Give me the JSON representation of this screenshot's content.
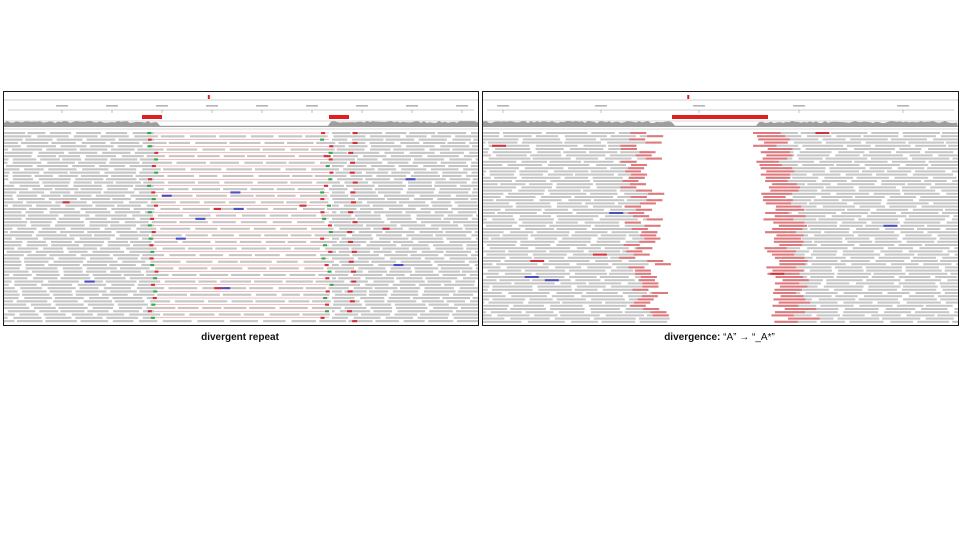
{
  "captions": {
    "left": "divergent repeat",
    "right_bold": "divergence:",
    "right_rest": " “A” → “_A*”"
  },
  "colors": {
    "read_gray": "#c6c6c6",
    "coverage_gray": "#9e9e9e",
    "mismatch_red": "#d6313a",
    "soft_clip_red": "#e0797e",
    "insert_green": "#3aa84a",
    "discordant_blue": "#4a4fc4",
    "region_marker_red": "#e02020"
  },
  "icons": [
    "region-marker-icon"
  ]
}
